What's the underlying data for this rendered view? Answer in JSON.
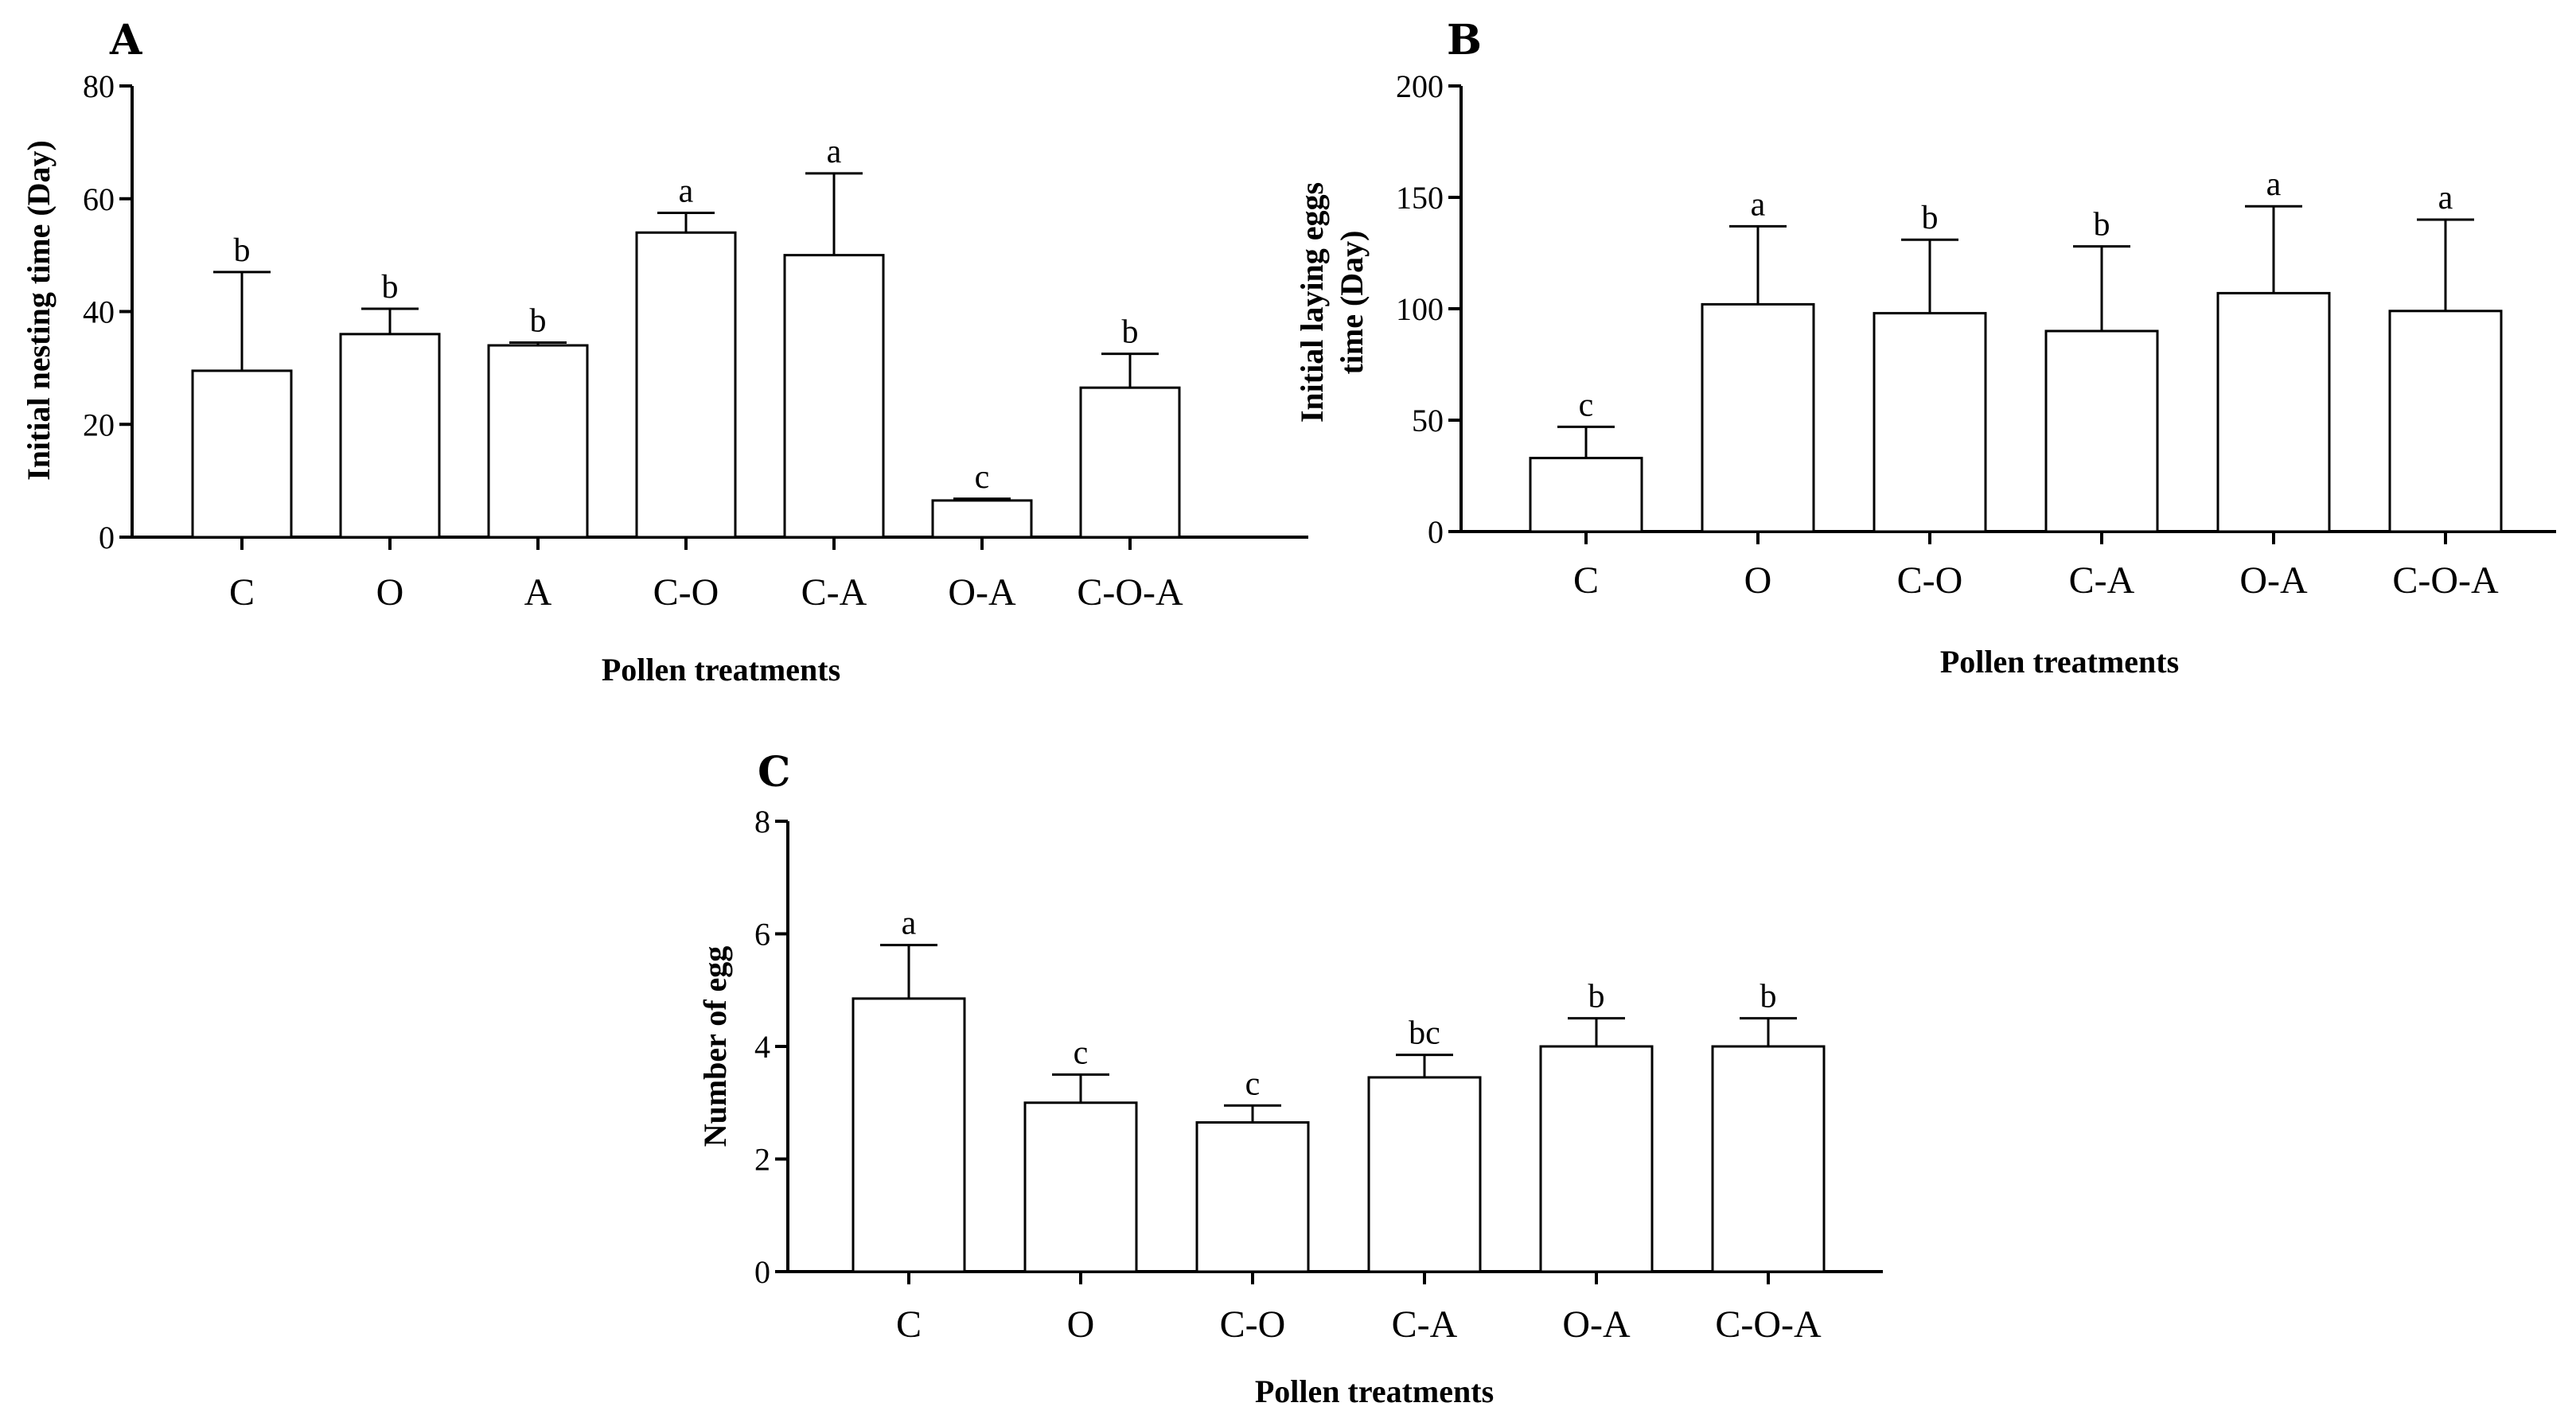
{
  "chart_data": [
    {
      "panel": "A",
      "type": "bar",
      "title": "",
      "ylabel": "Initial nesting time (Day)",
      "xlabel": "Pollen treatments",
      "ylim": [
        0,
        80
      ],
      "yticks": [
        0,
        20,
        40,
        60,
        80
      ],
      "categories": [
        "C",
        "O",
        "A",
        "C-O",
        "C-A",
        "O-A",
        "C-O-A"
      ],
      "values": [
        29.5,
        36,
        34,
        54,
        50,
        6.5,
        26.5
      ],
      "errors": [
        17.5,
        4.5,
        0.5,
        3.5,
        14.5,
        0.3,
        6
      ],
      "letters": [
        "b",
        "b",
        "b",
        "a",
        "a",
        "c",
        "b"
      ]
    },
    {
      "panel": "B",
      "type": "bar",
      "title": "",
      "ylabel": "Initial laying eggs time (Day)",
      "ylabel_lines": [
        "Initial laying eggs",
        "time (Day)"
      ],
      "xlabel": "Pollen treatments",
      "ylim": [
        0,
        200
      ],
      "yticks": [
        0,
        50,
        100,
        150,
        200
      ],
      "categories": [
        "C",
        "O",
        "C-O",
        "C-A",
        "O-A",
        "C-O-A"
      ],
      "values": [
        33,
        102,
        98,
        90,
        107,
        99
      ],
      "errors": [
        14,
        35,
        33,
        38,
        39,
        41
      ],
      "letters": [
        "c",
        "a",
        "b",
        "b",
        "a",
        "a"
      ]
    },
    {
      "panel": "C",
      "type": "bar",
      "title": "",
      "ylabel": "Number of egg",
      "xlabel": "Pollen treatments",
      "ylim": [
        0,
        8
      ],
      "yticks": [
        0,
        2,
        4,
        6,
        8
      ],
      "categories": [
        "C",
        "O",
        "C-O",
        "C-A",
        "O-A",
        "C-O-A"
      ],
      "values": [
        4.85,
        3.0,
        2.65,
        3.45,
        4.0,
        4.0
      ],
      "errors": [
        0.95,
        0.5,
        0.3,
        0.4,
        0.5,
        0.5
      ],
      "letters": [
        "a",
        "c",
        "c",
        "bc",
        "b",
        "b"
      ]
    }
  ]
}
